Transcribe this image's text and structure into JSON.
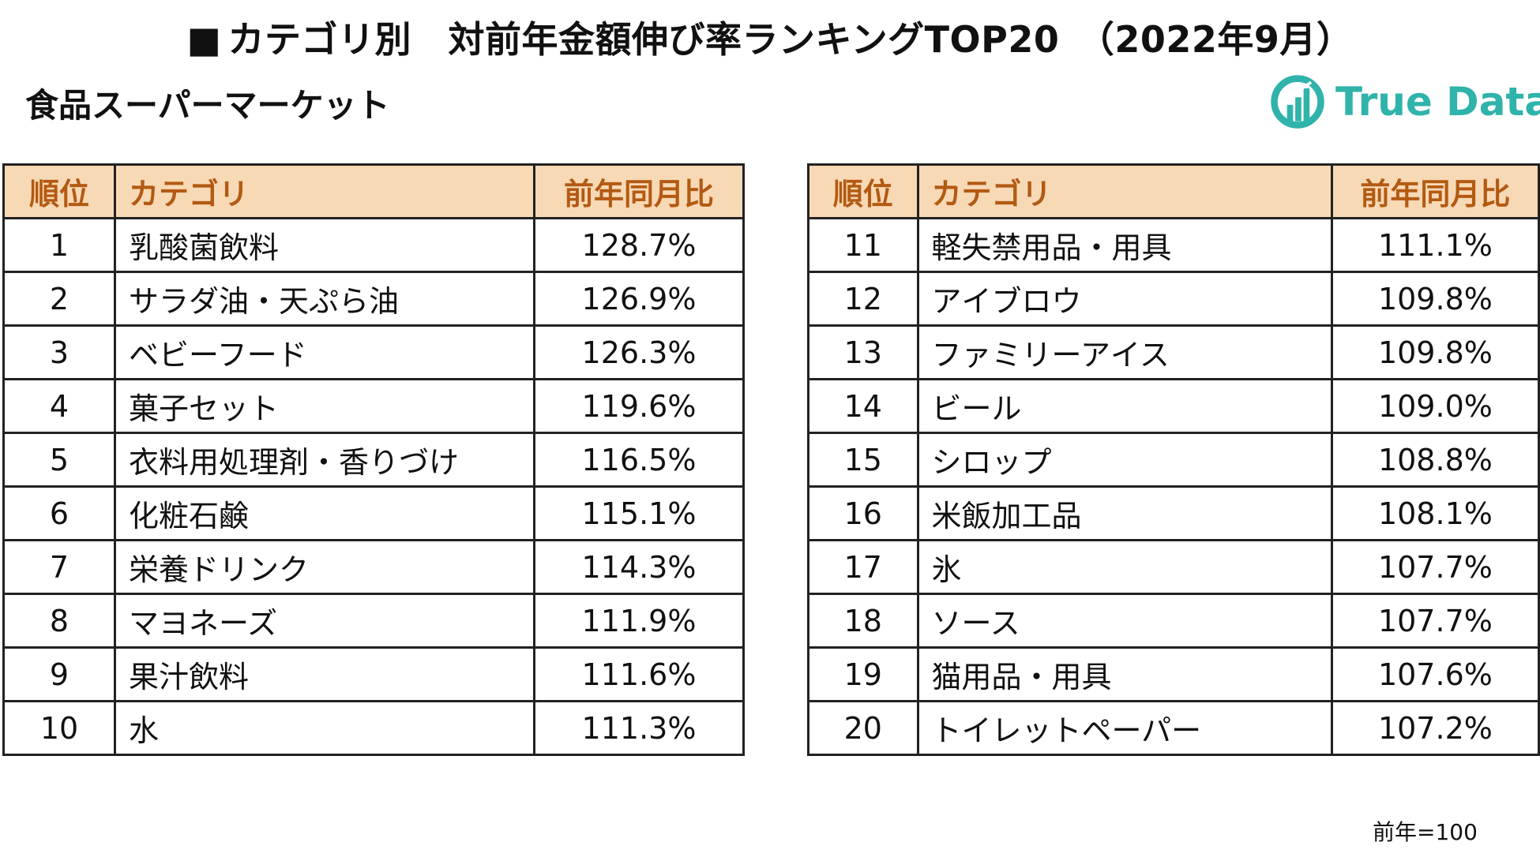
{
  "header": {
    "title_marker": "■",
    "title": "カテゴリ別　対前年金額伸び率ランキングTOP20　（2022年9月）",
    "subtitle": "食品スーパーマーケット"
  },
  "logo": {
    "text": "True Data",
    "color": "#2fb3aa"
  },
  "table": {
    "columns": {
      "rank": "順位",
      "category": "カテゴリ",
      "value": "前年同月比"
    },
    "header_bg": "#f8d9b6",
    "header_text_color": "#b35a12",
    "left_rows": [
      {
        "rank": "1",
        "category": "乳酸菌飲料",
        "value": "128.7%"
      },
      {
        "rank": "2",
        "category": "サラダ油・天ぷら油",
        "value": "126.9%"
      },
      {
        "rank": "3",
        "category": "ベビーフード",
        "value": "126.3%"
      },
      {
        "rank": "4",
        "category": "菓子セット",
        "value": "119.6%"
      },
      {
        "rank": "5",
        "category": "衣料用処理剤・香りづけ",
        "value": "116.5%"
      },
      {
        "rank": "6",
        "category": "化粧石鹸",
        "value": "115.1%"
      },
      {
        "rank": "7",
        "category": "栄養ドリンク",
        "value": "114.3%"
      },
      {
        "rank": "8",
        "category": "マヨネーズ",
        "value": "111.9%"
      },
      {
        "rank": "9",
        "category": "果汁飲料",
        "value": "111.6%"
      },
      {
        "rank": "10",
        "category": "水",
        "value": "111.3%"
      }
    ],
    "right_rows": [
      {
        "rank": "11",
        "category": "軽失禁用品・用具",
        "value": "111.1%"
      },
      {
        "rank": "12",
        "category": "アイブロウ",
        "value": "109.8%"
      },
      {
        "rank": "13",
        "category": "ファミリーアイス",
        "value": "109.8%"
      },
      {
        "rank": "14",
        "category": "ビール",
        "value": "109.0%"
      },
      {
        "rank": "15",
        "category": "シロップ",
        "value": "108.8%"
      },
      {
        "rank": "16",
        "category": "米飯加工品",
        "value": "108.1%"
      },
      {
        "rank": "17",
        "category": "氷",
        "value": "107.7%"
      },
      {
        "rank": "18",
        "category": "ソース",
        "value": "107.7%"
      },
      {
        "rank": "19",
        "category": "猫用品・用具",
        "value": "107.6%"
      },
      {
        "rank": "20",
        "category": "トイレットペーパー",
        "value": "107.2%"
      }
    ]
  },
  "footnote": "前年=100"
}
